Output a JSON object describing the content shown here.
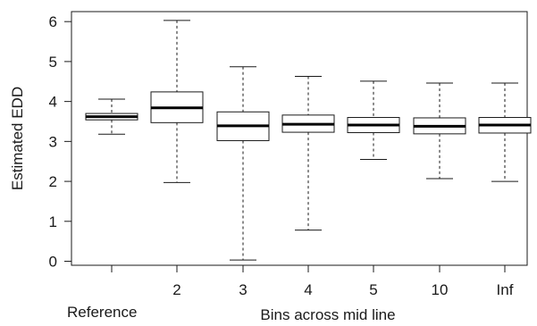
{
  "chart_data": {
    "type": "boxplot",
    "title": "",
    "xlabel": "Bins across mid line",
    "ylabel": "Estimated EDD",
    "ylim": [
      -0.1,
      6.25
    ],
    "yticks": [
      0,
      1,
      2,
      3,
      4,
      5,
      6
    ],
    "grid": false,
    "categories": [
      "Reference",
      "2",
      "3",
      "4",
      "5",
      "10",
      "Inf"
    ],
    "boxes": [
      {
        "category": "Reference",
        "min": 3.18,
        "q1": 3.54,
        "median": 3.62,
        "q3": 3.7,
        "max": 4.06
      },
      {
        "category": "2",
        "min": 1.97,
        "q1": 3.47,
        "median": 3.84,
        "q3": 4.24,
        "max": 6.03
      },
      {
        "category": "3",
        "min": 0.03,
        "q1": 3.02,
        "median": 3.39,
        "q3": 3.74,
        "max": 4.87
      },
      {
        "category": "4",
        "min": 0.78,
        "q1": 3.23,
        "median": 3.43,
        "q3": 3.66,
        "max": 4.63
      },
      {
        "category": "5",
        "min": 2.55,
        "q1": 3.22,
        "median": 3.41,
        "q3": 3.6,
        "max": 4.51
      },
      {
        "category": "10",
        "min": 2.07,
        "q1": 3.19,
        "median": 3.38,
        "q3": 3.59,
        "max": 4.46
      },
      {
        "category": "Inf",
        "min": 2.0,
        "q1": 3.21,
        "median": 3.41,
        "q3": 3.6,
        "max": 4.46
      }
    ]
  }
}
